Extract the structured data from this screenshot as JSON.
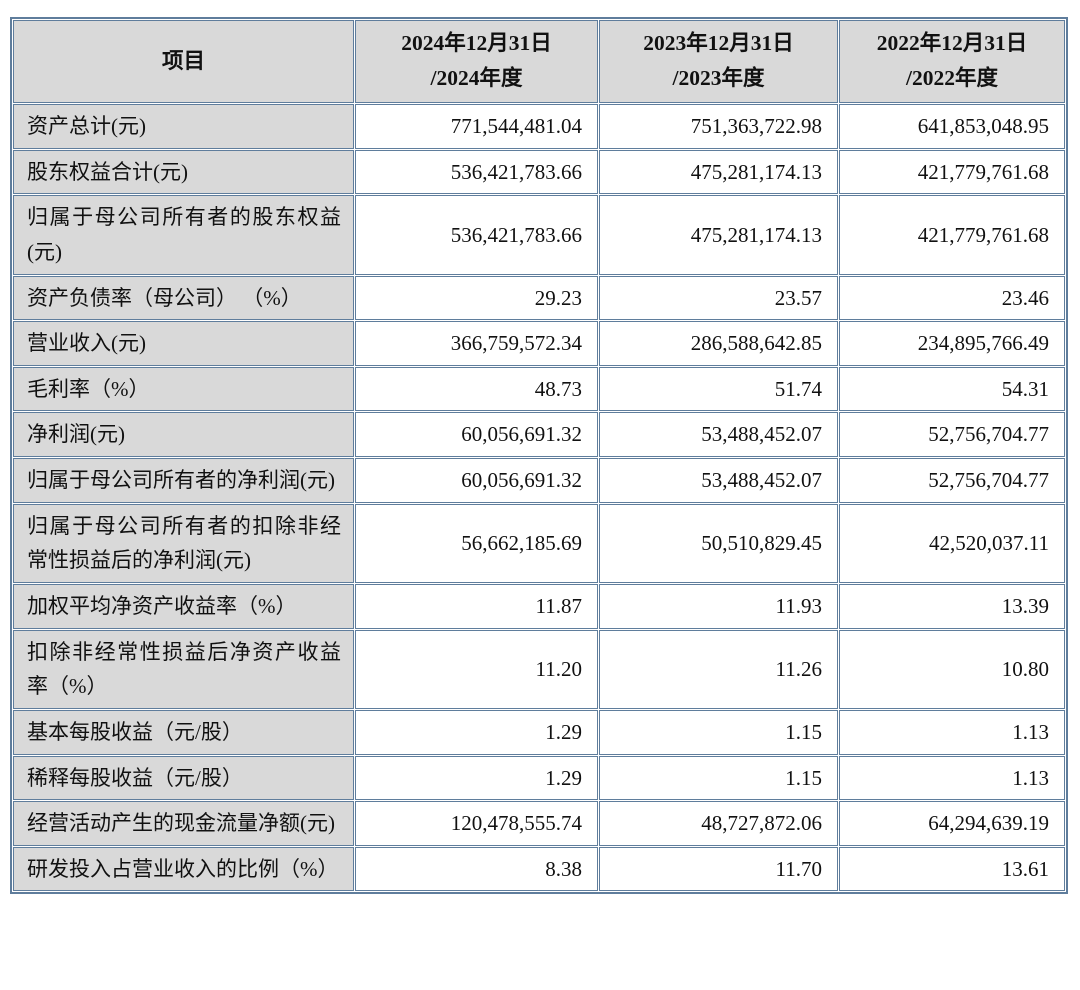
{
  "colors": {
    "border": "#5f7d9c",
    "header_bg": "#d9d9d9",
    "cell_bg": "#ffffff",
    "text": "#111111"
  },
  "table": {
    "header": {
      "item_label": "项目",
      "columns": [
        {
          "line1": "2024年12月31日",
          "line2": "/2024年度"
        },
        {
          "line1": "2023年12月31日",
          "line2": "/2023年度"
        },
        {
          "line1": "2022年12月31日",
          "line2": "/2022年度"
        }
      ]
    },
    "rows": [
      {
        "label": "资产总计(元)",
        "values": [
          "771,544,481.04",
          "751,363,722.98",
          "641,853,048.95"
        ]
      },
      {
        "label": "股东权益合计(元)",
        "values": [
          "536,421,783.66",
          "475,281,174.13",
          "421,779,761.68"
        ]
      },
      {
        "label": "归属于母公司所有者的股东权益(元)",
        "values": [
          "536,421,783.66",
          "475,281,174.13",
          "421,779,761.68"
        ]
      },
      {
        "label": "资产负债率（母公司） （%）",
        "values": [
          "29.23",
          "23.57",
          "23.46"
        ]
      },
      {
        "label": "营业收入(元)",
        "values": [
          "366,759,572.34",
          "286,588,642.85",
          "234,895,766.49"
        ]
      },
      {
        "label": "毛利率（%）",
        "values": [
          "48.73",
          "51.74",
          "54.31"
        ]
      },
      {
        "label": "净利润(元)",
        "values": [
          "60,056,691.32",
          "53,488,452.07",
          "52,756,704.77"
        ]
      },
      {
        "label": "归属于母公司所有者的净利润(元)",
        "values": [
          "60,056,691.32",
          "53,488,452.07",
          "52,756,704.77"
        ]
      },
      {
        "label": "归属于母公司所有者的扣除非经常性损益后的净利润(元)",
        "values": [
          "56,662,185.69",
          "50,510,829.45",
          "42,520,037.11"
        ]
      },
      {
        "label": "加权平均净资产收益率（%）",
        "values": [
          "11.87",
          "11.93",
          "13.39"
        ]
      },
      {
        "label": "扣除非经常性损益后净资产收益率（%）",
        "values": [
          "11.20",
          "11.26",
          "10.80"
        ]
      },
      {
        "label": "基本每股收益（元/股）",
        "values": [
          "1.29",
          "1.15",
          "1.13"
        ]
      },
      {
        "label": "稀释每股收益（元/股）",
        "values": [
          "1.29",
          "1.15",
          "1.13"
        ]
      },
      {
        "label": "经营活动产生的现金流量净额(元)",
        "values": [
          "120,478,555.74",
          "48,727,872.06",
          "64,294,639.19"
        ]
      },
      {
        "label": "研发投入占营业收入的比例（%）",
        "values": [
          "8.38",
          "11.70",
          "13.61"
        ]
      }
    ]
  }
}
